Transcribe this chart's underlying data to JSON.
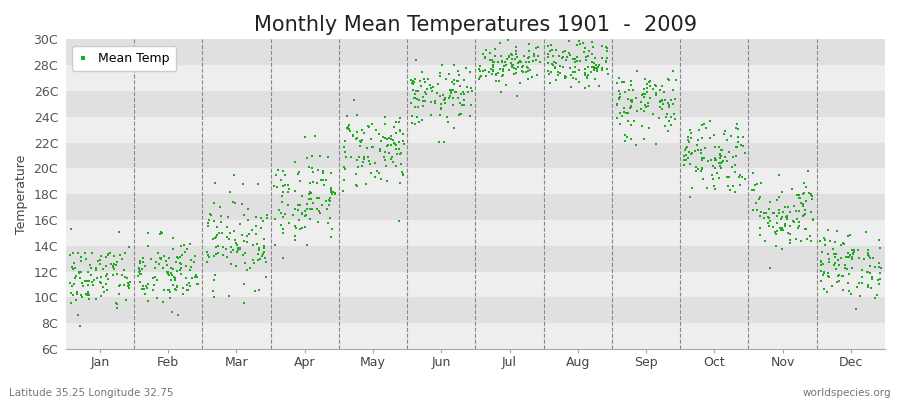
{
  "title": "Monthly Mean Temperatures 1901  -  2009",
  "ylabel": "Temperature",
  "xlabel_bottom_left": "Latitude 35.25 Longitude 32.75",
  "xlabel_bottom_right": "worldspecies.org",
  "legend_label": "Mean Temp",
  "dot_color": "#22aa22",
  "background_color": "#ffffff",
  "plot_bg_color": "#ffffff",
  "band_color_light": "#eeeeee",
  "band_color_dark": "#e0e0e0",
  "ylim": [
    6,
    30
  ],
  "yticks": [
    6,
    8,
    10,
    12,
    14,
    16,
    18,
    20,
    22,
    24,
    26,
    28,
    30
  ],
  "ytick_labels": [
    "6C",
    "8C",
    "10C",
    "12C",
    "14C",
    "16C",
    "18C",
    "20C",
    "22C",
    "24C",
    "26C",
    "28C",
    "30C"
  ],
  "months": [
    "Jan",
    "Feb",
    "Mar",
    "Apr",
    "May",
    "Jun",
    "Jul",
    "Aug",
    "Sep",
    "Oct",
    "Nov",
    "Dec"
  ],
  "monthly_mean_temps": [
    11.5,
    11.8,
    14.5,
    17.8,
    21.5,
    25.5,
    28.2,
    28.0,
    25.0,
    21.0,
    16.5,
    12.5
  ],
  "monthly_std_temps": [
    1.4,
    1.5,
    1.8,
    1.8,
    1.6,
    1.2,
    0.9,
    0.9,
    1.4,
    1.5,
    1.5,
    1.3
  ],
  "num_years": 109,
  "seed": 42,
  "title_fontsize": 15,
  "axis_label_fontsize": 9,
  "tick_fontsize": 9,
  "legend_fontsize": 9,
  "dot_size": 3,
  "dot_marker": "s"
}
